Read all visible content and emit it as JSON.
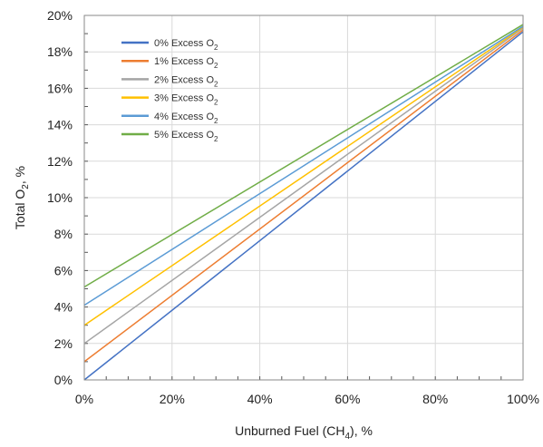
{
  "chart_data": {
    "type": "line",
    "xlabel": {
      "main": "Unburned Fuel (CH",
      "sub": "4",
      "tail": "), %"
    },
    "ylabel": {
      "main": "Total O",
      "sub": "2",
      "tail": ", %"
    },
    "xlim": [
      0,
      100
    ],
    "ylim": [
      0,
      20
    ],
    "xticks": [
      0,
      20,
      40,
      60,
      80,
      100
    ],
    "xtick_labels": [
      "0%",
      "20%",
      "40%",
      "60%",
      "80%",
      "100%"
    ],
    "yticks": [
      0,
      2,
      4,
      6,
      8,
      10,
      12,
      14,
      16,
      18,
      20
    ],
    "ytick_labels": [
      "0%",
      "2%",
      "4%",
      "6%",
      "8%",
      "10%",
      "12%",
      "14%",
      "16%",
      "18%",
      "20%"
    ],
    "x_minor_step": 5,
    "y_minor_step": 1,
    "grid": "major",
    "legend_position": "top-left",
    "series": [
      {
        "name": "0% Excess O",
        "sub": "2",
        "color": "#4472C4",
        "x": [
          0,
          100
        ],
        "y": [
          0.0,
          19.1
        ]
      },
      {
        "name": "1% Excess O",
        "sub": "2",
        "color": "#ED7D31",
        "x": [
          0,
          100
        ],
        "y": [
          1.0,
          19.2
        ]
      },
      {
        "name": "2% Excess O",
        "sub": "2",
        "color": "#A5A5A5",
        "x": [
          0,
          100
        ],
        "y": [
          2.0,
          19.3
        ]
      },
      {
        "name": "3% Excess O",
        "sub": "2",
        "color": "#FFC000",
        "x": [
          0,
          100
        ],
        "y": [
          3.0,
          19.35
        ]
      },
      {
        "name": "4% Excess O",
        "sub": "2",
        "color": "#5B9BD5",
        "x": [
          0,
          100
        ],
        "y": [
          4.1,
          19.4
        ]
      },
      {
        "name": "5% Excess O",
        "sub": "2",
        "color": "#70AD47",
        "x": [
          0,
          100
        ],
        "y": [
          5.1,
          19.5
        ]
      }
    ]
  }
}
